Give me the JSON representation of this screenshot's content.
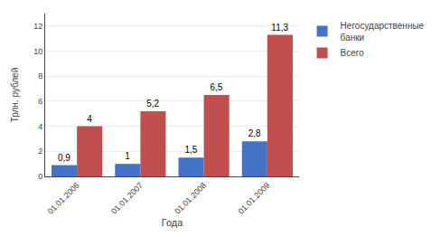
{
  "chart_data": {
    "type": "bar",
    "categories": [
      "01.01.2006",
      "01.01.2007",
      "01.01.2008",
      "01.01.2009"
    ],
    "series": [
      {
        "name": "Негосударственные\nбанки",
        "color": "#4472C4",
        "values": [
          0.9,
          1.0,
          1.5,
          2.8
        ],
        "value_labels": [
          "0,9",
          "1",
          "1,5",
          "2,8"
        ]
      },
      {
        "name": "Всего",
        "color": "#C0504D",
        "values": [
          4.0,
          5.2,
          6.5,
          11.3
        ],
        "value_labels": [
          "4",
          "5,2",
          "6,5",
          "11,3"
        ]
      }
    ],
    "xlabel": "Года",
    "ylabel": "Трлн. рублей",
    "ylim": [
      0,
      13
    ],
    "yticks": [
      0,
      2,
      4,
      6,
      8,
      10,
      12
    ],
    "grid": true,
    "legend": "right",
    "data_labels": true
  }
}
